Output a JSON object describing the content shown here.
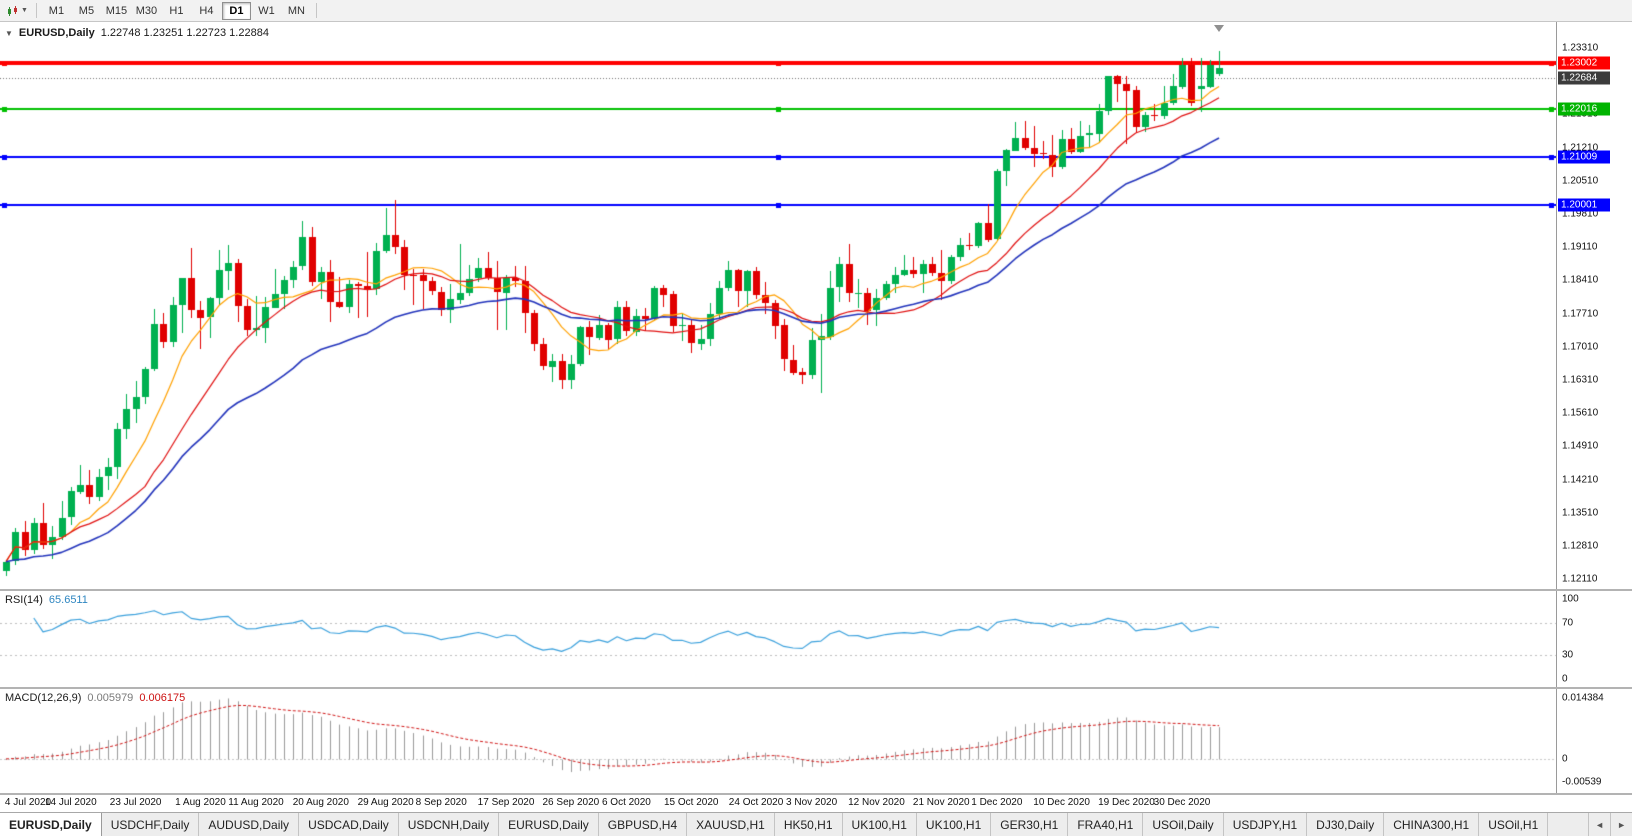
{
  "toolbar": {
    "timeframes": [
      {
        "label": "M1",
        "active": false
      },
      {
        "label": "M5",
        "active": false
      },
      {
        "label": "M15",
        "active": false
      },
      {
        "label": "M30",
        "active": false
      },
      {
        "label": "H1",
        "active": false
      },
      {
        "label": "H4",
        "active": false
      },
      {
        "label": "D1",
        "active": true
      },
      {
        "label": "W1",
        "active": false
      },
      {
        "label": "MN",
        "active": false
      }
    ]
  },
  "chart": {
    "title": "EURUSD,Daily",
    "ohlc_text": "1.22748 1.23251 1.22723 1.22884",
    "bid_price": 1.22684,
    "price_axis": {
      "labels": [
        "1.23310",
        "1.22610",
        "1.21910",
        "1.21210",
        "1.20510",
        "1.19810",
        "1.19110",
        "1.18410",
        "1.17710",
        "1.17010",
        "1.16310",
        "1.15610",
        "1.14910",
        "1.14210",
        "1.13510",
        "1.12810",
        "1.12110"
      ]
    },
    "badges": [
      {
        "text": "1.23002",
        "price": 1.23002,
        "color": "#ff0000"
      },
      {
        "text": "1.22684",
        "price": 1.22684,
        "color": "#3c3c3c"
      },
      {
        "text": "1.22016",
        "price": 1.22016,
        "color": "#00b400"
      },
      {
        "text": "1.21009",
        "price": 1.21009,
        "color": "#0000ff"
      },
      {
        "text": "1.20001",
        "price": 1.20001,
        "color": "#0000ff"
      }
    ],
    "hlines": [
      {
        "price": 1.23002,
        "color": "#ff0000",
        "width": 4
      },
      {
        "price": 1.22016,
        "color": "#00c000",
        "width": 2
      },
      {
        "price": 1.21009,
        "color": "#0000ff",
        "width": 2
      },
      {
        "price": 1.20001,
        "color": "#0000ff",
        "width": 2
      }
    ]
  },
  "chart_data": {
    "type": "candlestick",
    "symbol": "EURUSD",
    "timeframe": "Daily",
    "price_range": {
      "top": 1.2331,
      "bottom": 1.1211,
      "grid_step": 0.007
    },
    "candles": [
      [
        1.1228,
        1.1252,
        1.1219,
        1.1248
      ],
      [
        1.1248,
        1.132,
        1.1242,
        1.131
      ],
      [
        1.131,
        1.1333,
        1.1259,
        1.1273
      ],
      [
        1.1273,
        1.1341,
        1.1265,
        1.133
      ],
      [
        1.133,
        1.1371,
        1.1275,
        1.1284
      ],
      [
        1.1284,
        1.1324,
        1.1255,
        1.13
      ],
      [
        1.13,
        1.1375,
        1.1292,
        1.1341
      ],
      [
        1.1341,
        1.1405,
        1.1325,
        1.1396
      ],
      [
        1.1396,
        1.1452,
        1.139,
        1.141
      ],
      [
        1.141,
        1.1442,
        1.137,
        1.1385
      ],
      [
        1.1385,
        1.1444,
        1.1377,
        1.1427
      ],
      [
        1.1427,
        1.1467,
        1.14,
        1.1447
      ],
      [
        1.1447,
        1.154,
        1.1422,
        1.1527
      ],
      [
        1.1527,
        1.1601,
        1.1507,
        1.157
      ],
      [
        1.157,
        1.1628,
        1.154,
        1.1596
      ],
      [
        1.1596,
        1.1658,
        1.158,
        1.1655
      ],
      [
        1.1655,
        1.1781,
        1.165,
        1.175
      ],
      [
        1.175,
        1.1773,
        1.17,
        1.1713
      ],
      [
        1.1713,
        1.1807,
        1.1702,
        1.179
      ],
      [
        1.179,
        1.1847,
        1.1732,
        1.1846
      ],
      [
        1.1846,
        1.1909,
        1.1762,
        1.1778
      ],
      [
        1.1778,
        1.1797,
        1.1695,
        1.1762
      ],
      [
        1.1762,
        1.1807,
        1.1721,
        1.1803
      ],
      [
        1.1803,
        1.1905,
        1.179,
        1.1862
      ],
      [
        1.1862,
        1.1916,
        1.1822,
        1.1878
      ],
      [
        1.1878,
        1.1886,
        1.1754,
        1.1787
      ],
      [
        1.1787,
        1.1801,
        1.1722,
        1.1736
      ],
      [
        1.1736,
        1.1808,
        1.1723,
        1.174
      ],
      [
        1.174,
        1.1807,
        1.1711,
        1.1784
      ],
      [
        1.1784,
        1.1864,
        1.1782,
        1.1813
      ],
      [
        1.1813,
        1.1851,
        1.1782,
        1.1842
      ],
      [
        1.1842,
        1.1882,
        1.1826,
        1.187
      ],
      [
        1.187,
        1.1966,
        1.1863,
        1.1932
      ],
      [
        1.1932,
        1.1953,
        1.1829,
        1.1838
      ],
      [
        1.1838,
        1.1869,
        1.1801,
        1.1859
      ],
      [
        1.1859,
        1.1883,
        1.1753,
        1.1796
      ],
      [
        1.1796,
        1.1848,
        1.1782,
        1.1786
      ],
      [
        1.1786,
        1.1842,
        1.1773,
        1.1834
      ],
      [
        1.1834,
        1.1838,
        1.1763,
        1.183
      ],
      [
        1.183,
        1.19,
        1.1762,
        1.1822
      ],
      [
        1.1822,
        1.192,
        1.181,
        1.1903
      ],
      [
        1.1903,
        1.1993,
        1.1898,
        1.1936
      ],
      [
        1.1936,
        1.2011,
        1.1898,
        1.1911
      ],
      [
        1.1911,
        1.1927,
        1.1822,
        1.1853
      ],
      [
        1.1853,
        1.1865,
        1.1789,
        1.1852
      ],
      [
        1.1852,
        1.1865,
        1.1781,
        1.1839
      ],
      [
        1.1839,
        1.1849,
        1.181,
        1.1817
      ],
      [
        1.1817,
        1.1827,
        1.1765,
        1.1778
      ],
      [
        1.1778,
        1.1834,
        1.1752,
        1.1801
      ],
      [
        1.1801,
        1.1917,
        1.1791,
        1.1815
      ],
      [
        1.1815,
        1.1874,
        1.1808,
        1.1845
      ],
      [
        1.1845,
        1.1888,
        1.1838,
        1.1867
      ],
      [
        1.1867,
        1.19,
        1.1842,
        1.1846
      ],
      [
        1.1846,
        1.1882,
        1.1737,
        1.1816
      ],
      [
        1.1816,
        1.1852,
        1.1736,
        1.1847
      ],
      [
        1.1847,
        1.1872,
        1.1827,
        1.184
      ],
      [
        1.184,
        1.1872,
        1.1731,
        1.1772
      ],
      [
        1.1772,
        1.1778,
        1.1692,
        1.1707
      ],
      [
        1.1707,
        1.1719,
        1.1651,
        1.166
      ],
      [
        1.166,
        1.1686,
        1.1626,
        1.1672
      ],
      [
        1.1672,
        1.1685,
        1.1611,
        1.1631
      ],
      [
        1.1631,
        1.1684,
        1.1612,
        1.1664
      ],
      [
        1.1664,
        1.1745,
        1.1661,
        1.1742
      ],
      [
        1.1742,
        1.1755,
        1.1684,
        1.1721
      ],
      [
        1.1721,
        1.1769,
        1.1717,
        1.1748
      ],
      [
        1.1748,
        1.1751,
        1.1695,
        1.1716
      ],
      [
        1.1716,
        1.1797,
        1.1706,
        1.1784
      ],
      [
        1.1784,
        1.1798,
        1.1725,
        1.1733
      ],
      [
        1.1733,
        1.1781,
        1.1725,
        1.1766
      ],
      [
        1.1766,
        1.1782,
        1.1733,
        1.176
      ],
      [
        1.176,
        1.183,
        1.1758,
        1.1826
      ],
      [
        1.1826,
        1.1831,
        1.1785,
        1.1812
      ],
      [
        1.1812,
        1.1818,
        1.1731,
        1.1745
      ],
      [
        1.1745,
        1.1772,
        1.1712,
        1.1747
      ],
      [
        1.1747,
        1.1758,
        1.1688,
        1.1708
      ],
      [
        1.1708,
        1.1746,
        1.1694,
        1.1718
      ],
      [
        1.1718,
        1.1794,
        1.1703,
        1.177
      ],
      [
        1.177,
        1.184,
        1.176,
        1.1824
      ],
      [
        1.1824,
        1.1881,
        1.1817,
        1.1862
      ],
      [
        1.1862,
        1.1866,
        1.1785,
        1.1817
      ],
      [
        1.1817,
        1.1863,
        1.1786,
        1.186
      ],
      [
        1.186,
        1.187,
        1.1802,
        1.181
      ],
      [
        1.181,
        1.1837,
        1.1769,
        1.1794
      ],
      [
        1.1794,
        1.18,
        1.1718,
        1.1746
      ],
      [
        1.1746,
        1.1759,
        1.165,
        1.1674
      ],
      [
        1.1674,
        1.1704,
        1.164,
        1.1647
      ],
      [
        1.1647,
        1.1656,
        1.1622,
        1.1641
      ],
      [
        1.1641,
        1.174,
        1.1633,
        1.1715
      ],
      [
        1.1715,
        1.177,
        1.1603,
        1.1723
      ],
      [
        1.1723,
        1.186,
        1.1715,
        1.1826
      ],
      [
        1.1826,
        1.189,
        1.1795,
        1.1875
      ],
      [
        1.1875,
        1.1918,
        1.1795,
        1.1813
      ],
      [
        1.1813,
        1.1843,
        1.1781,
        1.1815
      ],
      [
        1.1815,
        1.1824,
        1.1745,
        1.1778
      ],
      [
        1.1778,
        1.1823,
        1.1746,
        1.1804
      ],
      [
        1.1804,
        1.1839,
        1.1799,
        1.1834
      ],
      [
        1.1834,
        1.1869,
        1.1814,
        1.1852
      ],
      [
        1.1852,
        1.1895,
        1.185,
        1.1863
      ],
      [
        1.1863,
        1.1891,
        1.1846,
        1.1854
      ],
      [
        1.1854,
        1.1885,
        1.1815,
        1.1875
      ],
      [
        1.1875,
        1.189,
        1.1849,
        1.1857
      ],
      [
        1.1857,
        1.1906,
        1.18,
        1.184
      ],
      [
        1.184,
        1.1895,
        1.1833,
        1.1891
      ],
      [
        1.1891,
        1.193,
        1.1881,
        1.1916
      ],
      [
        1.1916,
        1.1941,
        1.1905,
        1.1914
      ],
      [
        1.1914,
        1.1964,
        1.1909,
        1.1963
      ],
      [
        1.1963,
        1.2003,
        1.1923,
        1.1927
      ],
      [
        1.1927,
        1.2076,
        1.1924,
        1.2071
      ],
      [
        1.2071,
        1.2118,
        1.204,
        1.2115
      ],
      [
        1.2115,
        1.2175,
        1.2113,
        1.2142
      ],
      [
        1.2142,
        1.2177,
        1.2116,
        1.2121
      ],
      [
        1.2121,
        1.2166,
        1.2079,
        1.2109
      ],
      [
        1.2109,
        1.2134,
        1.2095,
        1.2106
      ],
      [
        1.2106,
        1.2147,
        1.2059,
        1.2081
      ],
      [
        1.2081,
        1.2159,
        1.2076,
        1.214
      ],
      [
        1.214,
        1.2163,
        1.2109,
        1.2113
      ],
      [
        1.2113,
        1.2177,
        1.211,
        1.2146
      ],
      [
        1.2146,
        1.2169,
        1.2123,
        1.2151
      ],
      [
        1.2151,
        1.2212,
        1.213,
        1.2199
      ],
      [
        1.2199,
        1.2273,
        1.219,
        1.2272
      ],
      [
        1.2272,
        1.2274,
        1.2217,
        1.2256
      ],
      [
        1.2256,
        1.2272,
        1.2129,
        1.2242
      ],
      [
        1.2242,
        1.2251,
        1.2151,
        1.2164
      ],
      [
        1.2164,
        1.2196,
        1.2153,
        1.219
      ],
      [
        1.219,
        1.2213,
        1.2178,
        1.2187
      ],
      [
        1.2187,
        1.225,
        1.2181,
        1.2215
      ],
      [
        1.2215,
        1.2276,
        1.221,
        1.225
      ],
      [
        1.225,
        1.231,
        1.2245,
        1.2296
      ],
      [
        1.2296,
        1.231,
        1.2209,
        1.2216
      ],
      [
        1.2244,
        1.231,
        1.2196,
        1.225
      ],
      [
        1.225,
        1.2306,
        1.2247,
        1.2296
      ],
      [
        1.22748,
        1.23251,
        1.22723,
        1.22884
      ]
    ],
    "x_labels": [
      {
        "i": 1,
        "t": "4 Jul 2020"
      },
      {
        "i": 7,
        "t": "14 Jul 2020"
      },
      {
        "i": 14,
        "t": "23 Jul 2020"
      },
      {
        "i": 21,
        "t": "1 Aug 2020"
      },
      {
        "i": 27,
        "t": "11 Aug 2020"
      },
      {
        "i": 34,
        "t": "20 Aug 2020"
      },
      {
        "i": 41,
        "t": "29 Aug 2020"
      },
      {
        "i": 47,
        "t": "8 Sep 2020"
      },
      {
        "i": 54,
        "t": "17 Sep 2020"
      },
      {
        "i": 61,
        "t": "26 Sep 2020"
      },
      {
        "i": 67,
        "t": "6 Oct 2020"
      },
      {
        "i": 74,
        "t": "15 Oct 2020"
      },
      {
        "i": 81,
        "t": "24 Oct 2020"
      },
      {
        "i": 87,
        "t": "3 Nov 2020"
      },
      {
        "i": 94,
        "t": "12 Nov 2020"
      },
      {
        "i": 101,
        "t": "21 Nov 2020"
      },
      {
        "i": 107,
        "t": "1 Dec 2020"
      },
      {
        "i": 114,
        "t": "10 Dec 2020"
      },
      {
        "i": 121,
        "t": "19 Dec 2020"
      },
      {
        "i": 127,
        "t": "30 Dec 2020"
      }
    ],
    "moving_averages": [
      {
        "period": 8,
        "method": "sma",
        "color": "#ffa000"
      },
      {
        "period": 16,
        "method": "sma",
        "color": "#e01010"
      },
      {
        "period": 30,
        "method": "ema",
        "color": "#2233bb"
      }
    ],
    "candle_colors": {
      "up": "#00b050",
      "down": "#e00000"
    },
    "indicators": {
      "rsi": {
        "label": "RSI(14)",
        "value": "65.6511",
        "period": 14,
        "color": "#3aa0dc",
        "levels": [
          70,
          30
        ],
        "scale": [
          {
            "text": "100",
            "value": 100
          },
          {
            "text": "70",
            "value": 70
          },
          {
            "text": "30",
            "value": 30
          },
          {
            "text": "0",
            "value": 0
          }
        ]
      },
      "macd": {
        "label": "MACD(12,26,9)",
        "values": [
          "0.005979",
          "0.006175"
        ],
        "fast": 12,
        "slow": 26,
        "signal": 9,
        "histogram_color": "#9a9a9a",
        "signal_color": "#d01515",
        "scale": [
          {
            "text": "0.014384",
            "value": 0.014384
          },
          {
            "text": "0",
            "value": 0
          },
          {
            "text": "-0.00539",
            "value": -0.00539
          }
        ]
      }
    }
  },
  "tabs": {
    "items": [
      {
        "label": "EURUSD,Daily",
        "active": true
      },
      {
        "label": "USDCHF,Daily"
      },
      {
        "label": "AUDUSD,Daily"
      },
      {
        "label": "USDCAD,Daily"
      },
      {
        "label": "USDCNH,Daily"
      },
      {
        "label": "EURUSD,Daily"
      },
      {
        "label": "GBPUSD,H4"
      },
      {
        "label": "XAUUSD,H1"
      },
      {
        "label": "HK50,H1"
      },
      {
        "label": "UK100,H1"
      },
      {
        "label": "UK100,H1"
      },
      {
        "label": "GER30,H1"
      },
      {
        "label": "FRA40,H1"
      },
      {
        "label": "USOil,Daily"
      },
      {
        "label": "USDJPY,H1"
      },
      {
        "label": "DJ30,Daily"
      },
      {
        "label": "CHINA300,H1"
      },
      {
        "label": "USOil,H1"
      }
    ],
    "scroll_left": "◄",
    "scroll_right": "►"
  }
}
